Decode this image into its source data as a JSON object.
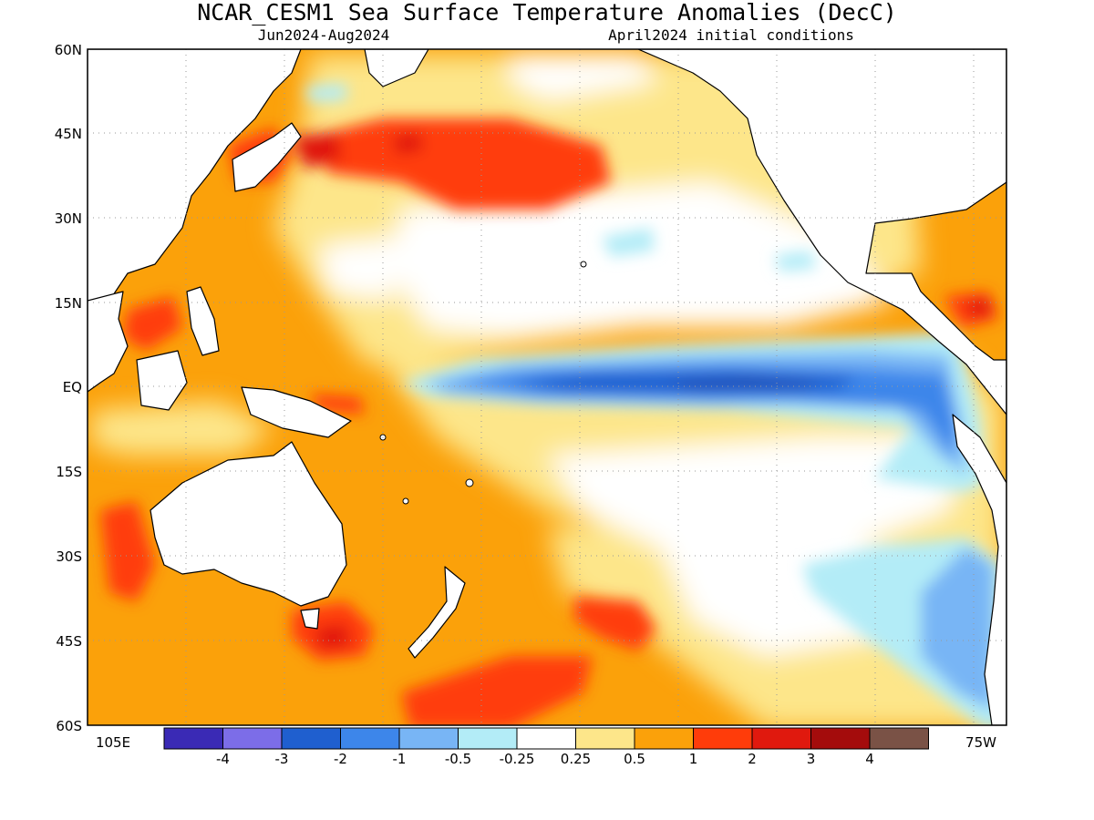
{
  "title": "NCAR_CESM1 Sea Surface Temperature Anomalies (DecC)",
  "subtitle_left": "Jun2024-Aug2024",
  "subtitle_right": "April2024 initial conditions",
  "lat_labels": [
    "60N",
    "45N",
    "30N",
    "15N",
    "EQ",
    "15S",
    "30S",
    "45S",
    "60S"
  ],
  "lon_labels": {
    "west_edge": "105E",
    "east_edge": "75W"
  },
  "colorbar": {
    "colors": [
      "#3a2ab5",
      "#7c6de8",
      "#1f5fcf",
      "#3d86ea",
      "#78b5f5",
      "#b3ecf7",
      "#ffffff",
      "#fde68a",
      "#fba10a",
      "#ff3c0a",
      "#e0190e",
      "#a40c0c",
      "#7a5246"
    ],
    "labels": [
      "-4",
      "-3",
      "-2",
      "-1",
      "-0.5",
      "-0.25",
      "0.25",
      "0.5",
      "1",
      "2",
      "3",
      "4"
    ]
  },
  "palette": {
    "land": "#ffffff",
    "coast": "#000000",
    "grid": "#999999"
  }
}
